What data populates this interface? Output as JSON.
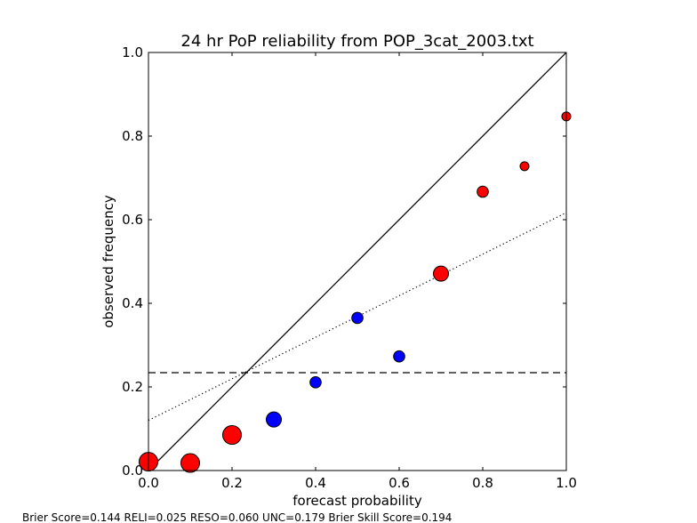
{
  "chart_data": {
    "type": "scatter",
    "title": "24 hr PoP reliability from POP_3cat_2003.txt",
    "xlabel": "forecast probability",
    "ylabel": "observed frequency",
    "xlim": [
      0.0,
      1.0
    ],
    "ylim": [
      0.0,
      1.0
    ],
    "xticks": [
      "0.0",
      "0.2",
      "0.4",
      "0.6",
      "0.8",
      "1.0"
    ],
    "yticks": [
      "0.0",
      "0.2",
      "0.4",
      "0.6",
      "0.8",
      "1.0"
    ],
    "xtick_values": [
      0.0,
      0.2,
      0.4,
      0.6,
      0.8,
      1.0
    ],
    "ytick_values": [
      0.0,
      0.2,
      0.4,
      0.6,
      0.8,
      1.0
    ],
    "grid": false,
    "points": [
      {
        "x": 0.0,
        "y": 0.021,
        "color": "#ff0000",
        "size": "large"
      },
      {
        "x": 0.1,
        "y": 0.018,
        "color": "#ff0000",
        "size": "large"
      },
      {
        "x": 0.2,
        "y": 0.085,
        "color": "#ff0000",
        "size": "large"
      },
      {
        "x": 0.3,
        "y": 0.122,
        "color": "#0000ff",
        "size": "medium"
      },
      {
        "x": 0.4,
        "y": 0.211,
        "color": "#0000ff",
        "size": "small"
      },
      {
        "x": 0.5,
        "y": 0.365,
        "color": "#0000ff",
        "size": "small"
      },
      {
        "x": 0.6,
        "y": 0.273,
        "color": "#0000ff",
        "size": "small"
      },
      {
        "x": 0.7,
        "y": 0.471,
        "color": "#ff0000",
        "size": "medium"
      },
      {
        "x": 0.8,
        "y": 0.667,
        "color": "#ff0000",
        "size": "small"
      },
      {
        "x": 0.9,
        "y": 0.728,
        "color": "#ff0000",
        "size": "tiny"
      },
      {
        "x": 1.0,
        "y": 0.847,
        "color": "#ff0000",
        "size": "tiny"
      }
    ],
    "reference_lines": {
      "perfect_reliability": {
        "x": [
          0.0,
          1.0
        ],
        "y": [
          0.0,
          1.0
        ],
        "style": "solid"
      },
      "climatology": {
        "y": 0.234,
        "style": "dashed"
      },
      "fit": {
        "x": [
          0.0,
          1.0
        ],
        "y": [
          0.12,
          0.617
        ],
        "style": "dotted"
      }
    },
    "footer": "Brier Score=0.144   RELI=0.025   RESO=0.060  UNC=0.179   Brier Skill Score=0.194"
  }
}
